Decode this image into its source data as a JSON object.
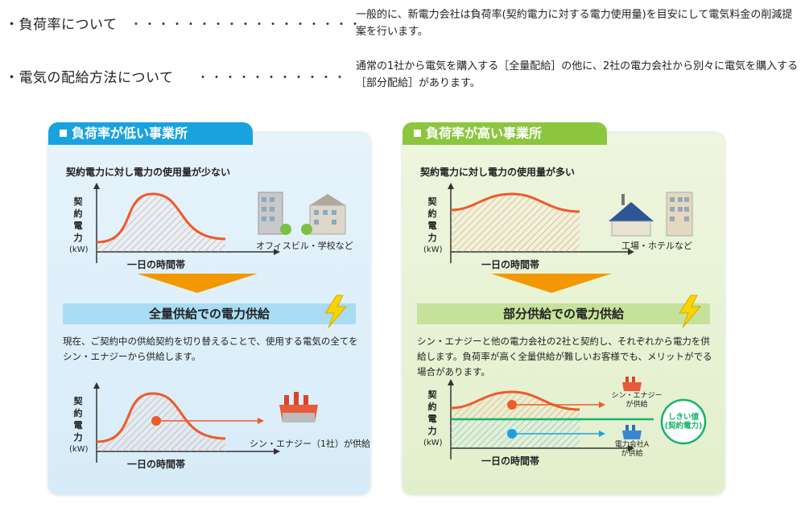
{
  "rows": [
    {
      "title": "・負荷率について",
      "dots": "・・・・・・・・・・・・・・・・・",
      "desc": "一般的に、新電力会社は負荷率(契約電力に対する電力使用量)を目安にして電気料金の削減提案を行います。"
    },
    {
      "title": "・電気の配給方法について",
      "dots": "・・・・・・・・・・・",
      "desc": "通常の1社から電気を購入する［全量配給］の他に、2社の電力会社から別々に電気を購入する［部分配給］があります。"
    }
  ],
  "left": {
    "tag": "負荷率が低い事業所",
    "subtitle": "契約電力に対し電力の使用量が少ない",
    "ylabel": [
      "契",
      "約",
      "電",
      "力"
    ],
    "yunit": "(kW)",
    "xlabel": "一日の時間帯",
    "icon_caption": "オフィスビル・学校など",
    "band": "全量供給での電力供給",
    "para": "現在、ご契約中の供給契約を切り替えることで、使用する電気の全てをシン・エナジーから供給します。",
    "xlabel2": "一日の時間帯",
    "supply_caption": "シン・エナジー（1社）が供給"
  },
  "right": {
    "tag": "負荷率が高い事業所",
    "subtitle": "契約電力に対し電力の使用量が多い",
    "ylabel": [
      "契",
      "約",
      "電",
      "力"
    ],
    "yunit": "(kW)",
    "xlabel": "一日の時間帯",
    "icon_caption": "工場・ホテルなど",
    "band": "部分供給での電力供給",
    "para": "シン・エナジーと他の電力会社の2社と契約し、それぞれから電力を供給します。負荷率が高く全量供給が難しいお客様でも、メリットがでる場合があります。",
    "xlabel2": "一日の時間帯",
    "supply1": "シン・エナジー\nが供給",
    "supply2": "電力会社A\nが供給",
    "threshold": "しきい値\n(契約電力)"
  },
  "colors": {
    "curve": "#ef5a2a",
    "hatch": "#f4a08a",
    "blue": "#1aa2df",
    "green": "#8cc63f",
    "orange": "#f39800",
    "teal": "#17b36b"
  }
}
